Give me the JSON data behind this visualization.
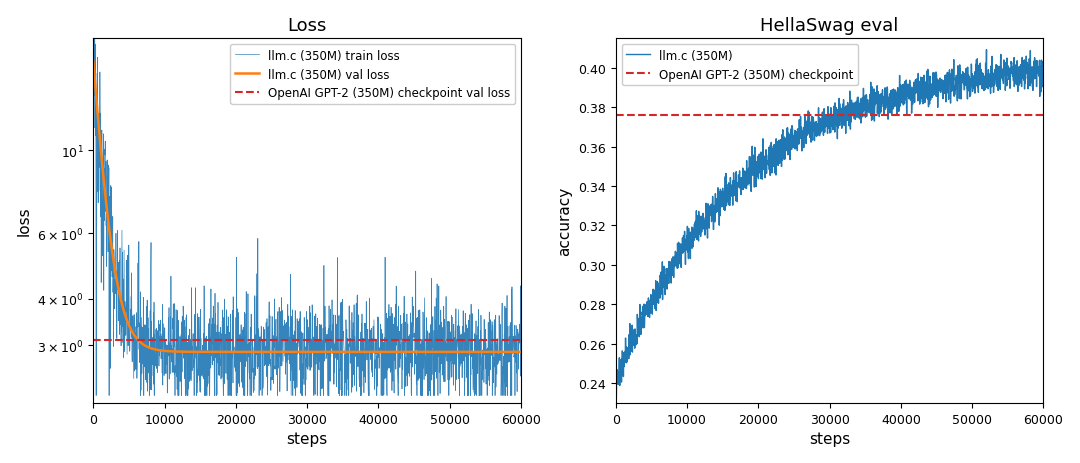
{
  "left_title": "Loss",
  "right_title": "HellaSwag eval",
  "left_xlabel": "steps",
  "left_ylabel": "loss",
  "right_xlabel": "steps",
  "right_ylabel": "accuracy",
  "x_max": 60000,
  "loss_red_hline": 3.1,
  "hellaswag_red_hline": 0.376,
  "hellaswag_ylim": [
    0.23,
    0.415
  ],
  "loss_ylim_log": [
    2.1,
    20
  ],
  "train_color": "#1f77b4",
  "val_color": "#ff7f0e",
  "ref_color": "#d62728",
  "legend_left": [
    "llm.c (350M) train loss",
    "llm.c (350M) val loss",
    "OpenAI GPT-2 (350M) checkpoint val loss"
  ],
  "legend_right": [
    "llm.c (350M)",
    "OpenAI GPT-2 (350M) checkpoint"
  ],
  "bg_color": "#ffffff",
  "seed": 42
}
